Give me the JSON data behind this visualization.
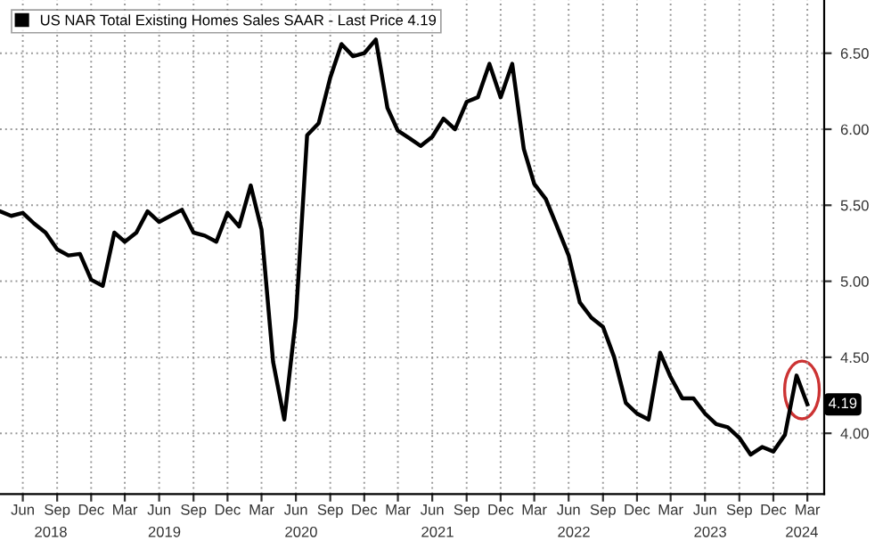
{
  "chart_data": {
    "type": "line",
    "x": [
      "2018-04",
      "2018-05",
      "2018-06",
      "2018-07",
      "2018-08",
      "2018-09",
      "2018-10",
      "2018-11",
      "2018-12",
      "2019-01",
      "2019-02",
      "2019-03",
      "2019-04",
      "2019-05",
      "2019-06",
      "2019-07",
      "2019-08",
      "2019-09",
      "2019-10",
      "2019-11",
      "2019-12",
      "2020-01",
      "2020-02",
      "2020-03",
      "2020-04",
      "2020-05",
      "2020-06",
      "2020-07",
      "2020-08",
      "2020-09",
      "2020-10",
      "2020-11",
      "2020-12",
      "2021-01",
      "2021-02",
      "2021-03",
      "2021-04",
      "2021-05",
      "2021-06",
      "2021-07",
      "2021-08",
      "2021-09",
      "2021-10",
      "2021-11",
      "2021-12",
      "2022-01",
      "2022-02",
      "2022-03",
      "2022-04",
      "2022-05",
      "2022-06",
      "2022-07",
      "2022-08",
      "2022-09",
      "2022-10",
      "2022-11",
      "2022-12",
      "2023-01",
      "2023-02",
      "2023-03",
      "2023-04",
      "2023-05",
      "2023-06",
      "2023-07",
      "2023-08",
      "2023-09",
      "2023-10",
      "2023-11",
      "2023-12",
      "2024-01",
      "2024-02",
      "2024-03"
    ],
    "series": [
      {
        "name": "US NAR Total Existing Homes Sales SAAR - Last Price 4.19",
        "color": "#000000",
        "values": [
          5.46,
          5.43,
          5.45,
          5.38,
          5.32,
          5.21,
          5.17,
          5.18,
          5.01,
          4.97,
          5.32,
          5.26,
          5.32,
          5.46,
          5.39,
          5.43,
          5.47,
          5.32,
          5.3,
          5.26,
          5.45,
          5.36,
          5.63,
          5.34,
          4.47,
          4.09,
          4.76,
          5.96,
          6.04,
          6.34,
          6.56,
          6.48,
          6.5,
          6.59,
          6.14,
          5.99,
          5.94,
          5.89,
          5.95,
          6.07,
          6.0,
          6.18,
          6.21,
          6.43,
          6.21,
          6.43,
          5.87,
          5.64,
          5.54,
          5.36,
          5.17,
          4.86,
          4.76,
          4.7,
          4.5,
          4.2,
          4.13,
          4.09,
          4.53,
          4.37,
          4.23,
          4.23,
          4.13,
          4.06,
          4.04,
          3.97,
          3.86,
          3.91,
          3.88,
          3.99,
          4.38,
          4.19
        ]
      }
    ],
    "xlim": [
      "2018-04",
      "2024-04-15"
    ],
    "xticks": [
      {
        "value": "2018-06",
        "label": "Jun"
      },
      {
        "value": "2018-09",
        "label": "Sep"
      },
      {
        "value": "2018-12",
        "label": "Dec"
      },
      {
        "value": "2019-03",
        "label": "Mar"
      },
      {
        "value": "2019-06",
        "label": "Jun"
      },
      {
        "value": "2019-09",
        "label": "Sep"
      },
      {
        "value": "2019-12",
        "label": "Dec"
      },
      {
        "value": "2020-03",
        "label": "Mar"
      },
      {
        "value": "2020-06",
        "label": "Jun"
      },
      {
        "value": "2020-09",
        "label": "Sep"
      },
      {
        "value": "2020-12",
        "label": "Dec"
      },
      {
        "value": "2021-03",
        "label": "Mar"
      },
      {
        "value": "2021-06",
        "label": "Jun"
      },
      {
        "value": "2021-09",
        "label": "Sep"
      },
      {
        "value": "2021-12",
        "label": "Dec"
      },
      {
        "value": "2022-03",
        "label": "Mar"
      },
      {
        "value": "2022-06",
        "label": "Jun"
      },
      {
        "value": "2022-09",
        "label": "Sep"
      },
      {
        "value": "2022-12",
        "label": "Dec"
      },
      {
        "value": "2023-03",
        "label": "Mar"
      },
      {
        "value": "2023-06",
        "label": "Jun"
      },
      {
        "value": "2023-09",
        "label": "Sep"
      },
      {
        "value": "2023-12",
        "label": "Dec"
      },
      {
        "value": "2024-03",
        "label": "Mar"
      }
    ],
    "x2lim": [
      "2018-04",
      "2024-04-15"
    ],
    "x2ticks": [
      {
        "value": "2018-08-15",
        "label": "2018"
      },
      {
        "value": "2019-06-15",
        "label": "2019"
      },
      {
        "value": "2020-06-15",
        "label": "2020"
      },
      {
        "value": "2021-06-15",
        "label": "2021"
      },
      {
        "value": "2022-06-15",
        "label": "2022"
      },
      {
        "value": "2023-06-15",
        "label": "2023"
      },
      {
        "value": "2024-02-15",
        "label": "2024"
      }
    ],
    "ylim": [
      3.6,
      6.85
    ],
    "yticks": [
      {
        "value": 4.0,
        "label": "4.00"
      },
      {
        "value": 4.5,
        "label": "4.50"
      },
      {
        "value": 5.0,
        "label": "5.00"
      },
      {
        "value": 5.5,
        "label": "5.50"
      },
      {
        "value": 6.0,
        "label": "6.00"
      },
      {
        "value": 6.5,
        "label": "6.50"
      }
    ],
    "annotations": [
      {
        "text": "4.19",
        "x": "2024-03",
        "y": 4.19
      }
    ],
    "grid": true,
    "legend": "top left",
    "marker": "none",
    "line_style": "solid"
  }
}
